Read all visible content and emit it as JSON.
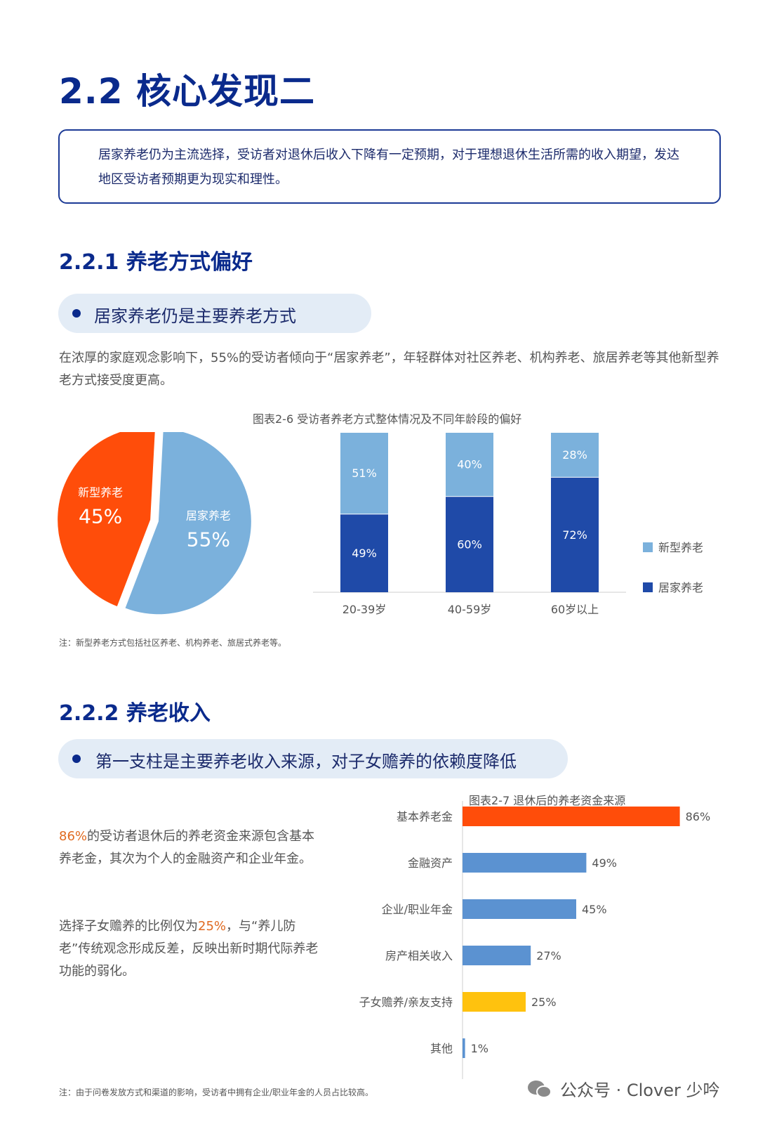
{
  "section_title": "2.2 核心发现二",
  "summary": "居家养老仍为主流选择，受访者对退休后收入下降有一定预期，对于理想退休生活所需的收入期望，发达地区受访者预期更为现实和理性。",
  "sub_1": {
    "title": "2.2.1 养老方式偏好",
    "pill": "居家养老仍是主要养老方式",
    "paragraph": "在浓厚的家庭观念影响下，55%的受访者倾向于“居家养老”，年轻群体对社区养老、机构养老、旅居养老等其他新型养老方式接受度更高。",
    "figure_title": "图表2-6 受访者养老方式整体情况及不同年龄段的偏好",
    "note": "注：新型养老方式包括社区养老、机构养老、旅居式养老等。"
  },
  "sub_2": {
    "title": "2.2.2 养老收入",
    "pill": "第一支柱是主要养老收入来源，对子女赡养的依赖度降低",
    "para_a": {
      "pct": "86%",
      "rest": "的受访者退休后的养老资金来源包含基本养老金，其次为个人的金融资产和企业年金。"
    },
    "para_b": {
      "pre": "选择子女赡养的比例仅为",
      "pct": "25%",
      "post": "，与“养儿防老”传统观念形成反差，反映出新时期代际养老功能的弱化。"
    },
    "figure_title": "图表2-7 退休后的养老资金来源",
    "note": "注：由于问卷发放方式和渠道的影响，受访者中拥有企业/职业年金的人员占比较高。"
  },
  "watermark": "公众号 · Clover 少吟",
  "colors": {
    "navy": "#0a2a8c",
    "orange": "#ff4d0a",
    "light_blue": "#7bb1dc",
    "dark_blue": "#1f4aa8",
    "mid_blue": "#5b92d1",
    "yellow": "#ffc20e"
  },
  "chart_data": [
    {
      "type": "pie",
      "slices": [
        {
          "label": "居家养老",
          "value": 55,
          "display": "55%",
          "color": "#7bb1dc"
        },
        {
          "label": "新型养老",
          "value": 45,
          "display": "45%",
          "color": "#ff4d0a"
        }
      ]
    },
    {
      "type": "bar",
      "stacked": true,
      "categories": [
        "20-39岁",
        "40-59岁",
        "60岁以上"
      ],
      "series": [
        {
          "name": "居家养老",
          "values": [
            49,
            60,
            72
          ],
          "color": "#1f4aa8"
        },
        {
          "name": "新型养老",
          "values": [
            51,
            40,
            28
          ],
          "color": "#7bb1dc"
        }
      ],
      "ylim": [
        0,
        100
      ],
      "legend": "right"
    },
    {
      "type": "bar",
      "orientation": "horizontal",
      "categories": [
        "基本养老金",
        "金融资产",
        "企业/职业年金",
        "房产相关收入",
        "子女赡养/亲友支持",
        "其他"
      ],
      "values": [
        86,
        49,
        45,
        27,
        25,
        1
      ],
      "colors": [
        "#ff4d0a",
        "#5b92d1",
        "#5b92d1",
        "#5b92d1",
        "#ffc20e",
        "#5b92d1"
      ],
      "xlim": [
        0,
        100
      ]
    }
  ]
}
